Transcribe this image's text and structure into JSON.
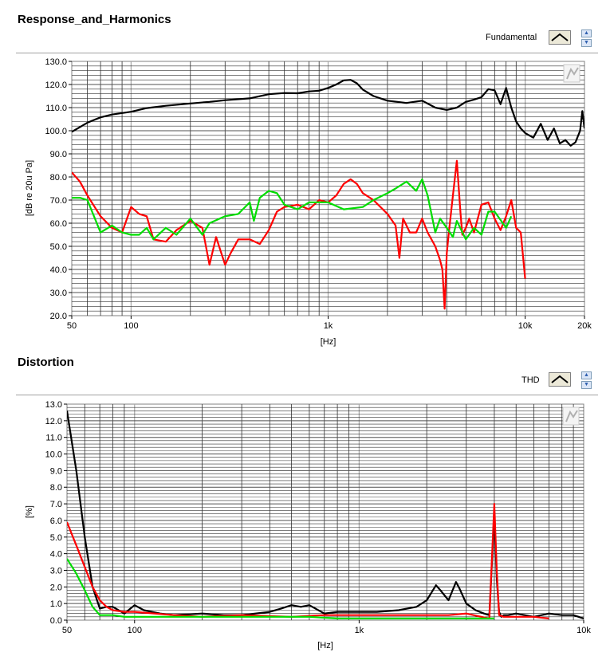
{
  "chart_data": [
    {
      "type": "line",
      "title": "Response_and_Harmonics",
      "legend_label": "Fundamental",
      "xscale": "log",
      "xlim": [
        50,
        20000
      ],
      "ylim": [
        20,
        130
      ],
      "xlabel": "[Hz]",
      "ylabel": "[dB re 20u Pa]",
      "xticklabels": [
        {
          "v": 50,
          "t": "50"
        },
        {
          "v": 100,
          "t": "100"
        },
        {
          "v": 1000,
          "t": "1k"
        },
        {
          "v": 10000,
          "t": "10k"
        },
        {
          "v": 20000,
          "t": "20k"
        }
      ],
      "yticks": [
        20,
        30,
        40,
        50,
        60,
        70,
        80,
        90,
        100,
        110,
        120,
        130
      ],
      "yticklabels": [
        "20.0",
        "30.0",
        "40.0",
        "50.0",
        "60.0",
        "70.0",
        "80.0",
        "90.0",
        "100.0",
        "110.0",
        "120.0",
        "130.0"
      ],
      "grid": true,
      "series": [
        {
          "color": "#000000",
          "x": [
            50,
            60,
            70,
            80,
            100,
            120,
            150,
            200,
            250,
            300,
            400,
            500,
            600,
            700,
            800,
            900,
            1000,
            1100,
            1200,
            1300,
            1400,
            1500,
            1700,
            2000,
            2500,
            3000,
            3500,
            4000,
            4500,
            5000,
            5500,
            6000,
            6500,
            7000,
            7500,
            8000,
            8500,
            9000,
            9500,
            10000,
            11000,
            12000,
            13000,
            14000,
            15000,
            16000,
            17000,
            18000,
            19000,
            19500,
            20000
          ],
          "y": [
            99.5,
            103.5,
            105.8,
            107,
            108.2,
            109.8,
            110.8,
            111.8,
            112.5,
            113.2,
            114,
            115.8,
            116.3,
            116.2,
            117,
            117.3,
            118.5,
            120,
            121.8,
            122,
            120.5,
            117.8,
            115,
            113,
            112,
            113,
            110,
            109,
            110,
            112.5,
            113.5,
            114.5,
            118,
            117.5,
            111.5,
            118.5,
            110,
            104,
            101,
            99,
            97,
            103,
            96,
            101,
            94.5,
            96,
            93.5,
            95,
            100,
            108.5,
            101
          ]
        },
        {
          "color": "#ff0000",
          "x": [
            50,
            55,
            60,
            70,
            80,
            90,
            100,
            110,
            120,
            130,
            150,
            170,
            200,
            230,
            250,
            270,
            300,
            320,
            350,
            400,
            450,
            500,
            550,
            600,
            700,
            800,
            900,
            1000,
            1100,
            1200,
            1300,
            1400,
            1500,
            1700,
            2000,
            2200,
            2300,
            2400,
            2600,
            2800,
            3000,
            3200,
            3500,
            3700,
            3800,
            3900,
            4000,
            4100,
            4300,
            4500,
            4700,
            4800,
            5000,
            5200,
            5500,
            6000,
            6500,
            7000,
            7500,
            8000,
            8500,
            9000,
            9500,
            10000
          ],
          "y": [
            82,
            78,
            72,
            63,
            58,
            56,
            67,
            64,
            63,
            53,
            52,
            57,
            61,
            58,
            42,
            54,
            42,
            47,
            53,
            53,
            51,
            57,
            65,
            67,
            68,
            66,
            70,
            69,
            72,
            77,
            79,
            77,
            73,
            70,
            64,
            59,
            45,
            62,
            56,
            56,
            62,
            56,
            50,
            44,
            40,
            23,
            47,
            56,
            72,
            87,
            64,
            55,
            58,
            62,
            56,
            68,
            69,
            62,
            57,
            63,
            70,
            58,
            56,
            36
          ]
        },
        {
          "color": "#00dd00",
          "x": [
            50,
            55,
            60,
            70,
            80,
            90,
            100,
            110,
            120,
            130,
            150,
            170,
            200,
            230,
            250,
            300,
            350,
            400,
            420,
            450,
            500,
            550,
            600,
            700,
            800,
            900,
            1000,
            1200,
            1500,
            1700,
            2000,
            2200,
            2500,
            2800,
            3000,
            3200,
            3500,
            3700,
            4000,
            4300,
            4500,
            5000,
            5500,
            6000,
            6500,
            7000,
            8000,
            8500
          ],
          "y": [
            71,
            71,
            70,
            56,
            59,
            56,
            55,
            55,
            58,
            53,
            58,
            55,
            62,
            55,
            60,
            63,
            64,
            69,
            61,
            71,
            74,
            73,
            68,
            66,
            69,
            69,
            69,
            66,
            67,
            70,
            73,
            75,
            78,
            74,
            79,
            72,
            56,
            62,
            58,
            54,
            61,
            53,
            58,
            55,
            65,
            65,
            58,
            63
          ]
        }
      ]
    },
    {
      "type": "line",
      "title": "Distortion",
      "legend_label": "THD",
      "xscale": "log",
      "xlim": [
        50,
        10000
      ],
      "ylim": [
        0,
        13
      ],
      "xlabel": "[Hz]",
      "ylabel": "[%]",
      "xticklabels": [
        {
          "v": 50,
          "t": "50"
        },
        {
          "v": 100,
          "t": "100"
        },
        {
          "v": 1000,
          "t": "1k"
        },
        {
          "v": 10000,
          "t": "10k"
        }
      ],
      "yticks": [
        0,
        1,
        2,
        3,
        4,
        5,
        6,
        7,
        8,
        9,
        10,
        11,
        12,
        13
      ],
      "yticklabels": [
        "0.0",
        "1.0",
        "2.0",
        "3.0",
        "4.0",
        "5.0",
        "6.0",
        "7.0",
        "8.0",
        "9.0",
        "10.0",
        "11.0",
        "12.0",
        "13.0"
      ],
      "grid": true,
      "series": [
        {
          "color": "#000000",
          "x": [
            50,
            55,
            60,
            65,
            70,
            75,
            80,
            90,
            100,
            110,
            130,
            150,
            200,
            250,
            300,
            400,
            450,
            500,
            550,
            600,
            700,
            800,
            1000,
            1200,
            1500,
            1800,
            2000,
            2200,
            2300,
            2500,
            2700,
            2800,
            3000,
            3300,
            3600,
            3800,
            4000,
            4100,
            4200,
            4300,
            4400,
            4600,
            5000,
            6000,
            7000,
            8000,
            9000,
            10000
          ],
          "y": [
            12.6,
            9,
            5,
            2,
            0.7,
            0.8,
            0.8,
            0.4,
            0.9,
            0.6,
            0.4,
            0.3,
            0.4,
            0.3,
            0.3,
            0.5,
            0.7,
            0.9,
            0.8,
            0.9,
            0.4,
            0.5,
            0.5,
            0.5,
            0.6,
            0.8,
            1.2,
            2.1,
            1.8,
            1.2,
            2.3,
            1.9,
            1.0,
            0.6,
            0.4,
            0.3,
            6.4,
            2.5,
            0.5,
            0.2,
            0.3,
            0.3,
            0.4,
            0.2,
            0.4,
            0.3,
            0.3,
            0.1
          ]
        },
        {
          "color": "#ff0000",
          "x": [
            50,
            55,
            60,
            65,
            70,
            75,
            80,
            90,
            100,
            150,
            200,
            300,
            500,
            700,
            1000,
            1500,
            2000,
            2500,
            3000,
            3500,
            3800,
            4000,
            4100,
            4200,
            4400,
            5000,
            6000,
            7000
          ],
          "y": [
            5.9,
            4.5,
            3.2,
            2.0,
            1.2,
            0.8,
            0.6,
            0.5,
            0.5,
            0.3,
            0.2,
            0.3,
            0.2,
            0.3,
            0.3,
            0.3,
            0.3,
            0.3,
            0.4,
            0.2,
            0.1,
            7.0,
            3,
            0.3,
            0.2,
            0.2,
            0.2,
            0.1
          ]
        },
        {
          "color": "#00dd00",
          "x": [
            50,
            55,
            60,
            65,
            70,
            80,
            90,
            100,
            150,
            200,
            300,
            500,
            600,
            800,
            1000,
            1200,
            1500,
            2000,
            2500,
            3000,
            3500,
            4000
          ],
          "y": [
            3.7,
            2.8,
            1.8,
            0.8,
            0.3,
            0.3,
            0.2,
            0.2,
            0.2,
            0.2,
            0.2,
            0.2,
            0.2,
            0.1,
            0.1,
            0.1,
            0.1,
            0.1,
            0.1,
            0.1,
            0.1,
            0.1
          ]
        }
      ]
    }
  ]
}
